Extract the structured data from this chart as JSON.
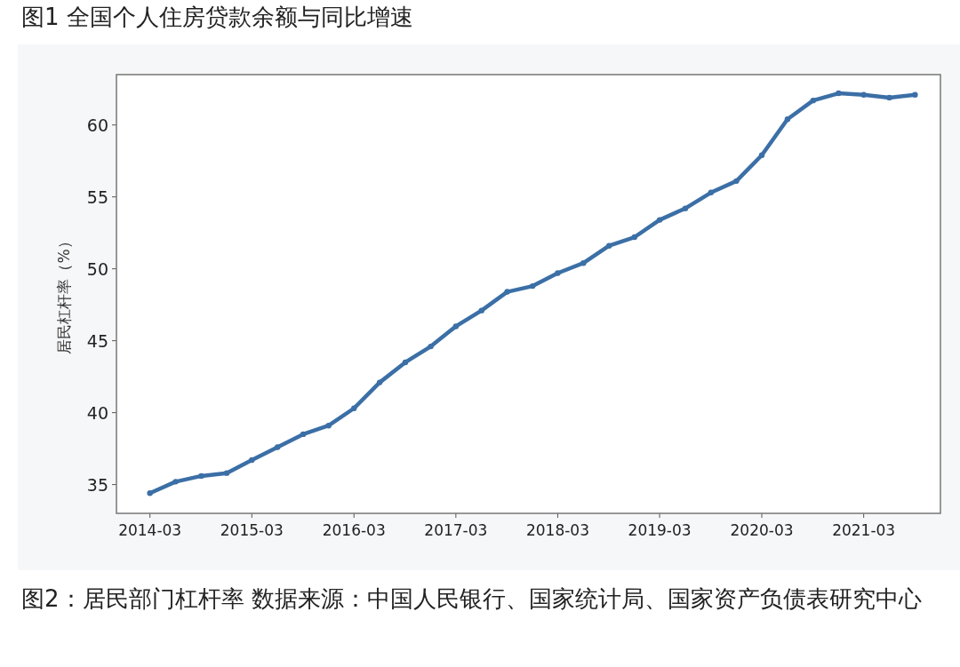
{
  "chart_data": {
    "type": "line",
    "title": "图1 全国个人住房贷款余额与同比增速",
    "ylabel": "居民杠杆率（%）",
    "annotations": [
      "图2：居民部门杠杆率  数据来源：中国人民银行、国家统计局、国家资产负债表研究中心"
    ],
    "x": [
      "2014-03",
      "2014-06",
      "2014-09",
      "2014-12",
      "2015-03",
      "2015-06",
      "2015-09",
      "2015-12",
      "2016-03",
      "2016-06",
      "2016-09",
      "2016-12",
      "2017-03",
      "2017-06",
      "2017-09",
      "2017-12",
      "2018-03",
      "2018-06",
      "2018-09",
      "2018-12",
      "2019-03",
      "2019-06",
      "2019-09",
      "2019-12",
      "2020-03",
      "2020-06",
      "2020-09",
      "2020-12",
      "2021-03",
      "2021-06",
      "2021-09"
    ],
    "series": [
      {
        "color": "#3b6fa6",
        "values": [
          34.4,
          35.2,
          35.6,
          35.8,
          36.7,
          37.6,
          38.5,
          39.1,
          40.3,
          42.1,
          43.5,
          44.6,
          46.0,
          47.1,
          48.4,
          48.8,
          49.7,
          50.4,
          51.6,
          52.2,
          53.4,
          54.2,
          55.3,
          56.1,
          57.9,
          60.4,
          61.7,
          62.2,
          62.1,
          61.9,
          62.1
        ]
      }
    ],
    "xlim": [
      "2013-11-01",
      "2021-12-01"
    ],
    "xticks": [
      {
        "value": "2014-03",
        "label": "2014-03"
      },
      {
        "value": "2015-03",
        "label": "2015-03"
      },
      {
        "value": "2016-03",
        "label": "2016-03"
      },
      {
        "value": "2017-03",
        "label": "2017-03"
      },
      {
        "value": "2018-03",
        "label": "2018-03"
      },
      {
        "value": "2019-03",
        "label": "2019-03"
      },
      {
        "value": "2020-03",
        "label": "2020-03"
      },
      {
        "value": "2021-03",
        "label": "2021-03"
      }
    ],
    "ylim": [
      33,
      63.5
    ],
    "yticks": [
      35,
      40,
      45,
      50,
      55,
      60
    ],
    "marker": "circle",
    "line_style": "solid"
  }
}
